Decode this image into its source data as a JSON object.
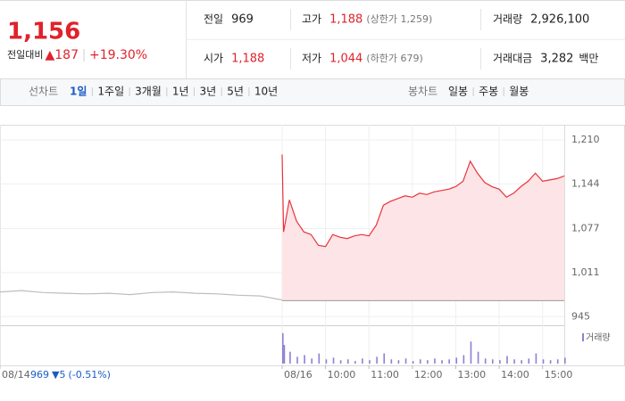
{
  "quote": {
    "price": "1,156",
    "change_label": "전일대비",
    "change": "▲187",
    "change_rate": "+19.30%"
  },
  "summary": {
    "rows": [
      [
        {
          "label": "전일",
          "value": "969"
        },
        {
          "label": "고가",
          "value": "1,188",
          "note": "(상한가 1,259)"
        },
        {
          "label": "거래량",
          "value": "2,926,100"
        }
      ],
      [
        {
          "label": "시가",
          "value": "1,188"
        },
        {
          "label": "저가",
          "value": "1,044",
          "note": "(하한가 679)"
        },
        {
          "label": "거래대금",
          "value": "3,282",
          "unit": "백만"
        }
      ]
    ]
  },
  "tabs": {
    "line_label": "선차트",
    "line": [
      "1일",
      "1주일",
      "3개월",
      "1년",
      "3년",
      "5년",
      "10년"
    ],
    "selected": 0,
    "candle_label": "봉차트",
    "candle": [
      "일봉",
      "주봉",
      "월봉"
    ]
  },
  "chart_data": {
    "type": "line",
    "xlim": [
      -390,
      390
    ],
    "xticks": [
      {
        "value": -390,
        "label": "08/14"
      },
      {
        "value": 0,
        "label": "08/16"
      },
      {
        "value": 60,
        "label": "10:00"
      },
      {
        "value": 120,
        "label": "11:00"
      },
      {
        "value": 180,
        "label": "12:00"
      },
      {
        "value": 240,
        "label": "13:00"
      },
      {
        "value": 300,
        "label": "14:00"
      },
      {
        "value": 360,
        "label": "15:00"
      }
    ],
    "ylim": [
      932,
      1226
    ],
    "yticks": [
      {
        "value": 1210,
        "label": "1,210"
      },
      {
        "value": 1144,
        "label": "1,144"
      },
      {
        "value": 1077,
        "label": "1,077"
      },
      {
        "value": 1011,
        "label": "1,011"
      },
      {
        "value": 945,
        "label": "945"
      }
    ],
    "grid": true,
    "series": [
      {
        "color": "#bdbdbd",
        "x": [
          -390,
          -360,
          -330,
          -300,
          -270,
          -240,
          -210,
          -180,
          -150,
          -120,
          -90,
          -60,
          -30,
          -10,
          0
        ],
        "values": [
          982,
          984,
          981,
          980,
          979,
          980,
          978,
          981,
          982,
          980,
          979,
          977,
          976,
          972,
          970
        ]
      },
      {
        "color": "#e8343c",
        "fill": "#fde4e6",
        "x": [
          0,
          2,
          10,
          20,
          30,
          40,
          50,
          60,
          70,
          80,
          90,
          100,
          110,
          120,
          130,
          140,
          150,
          160,
          170,
          180,
          190,
          200,
          210,
          220,
          230,
          240,
          250,
          260,
          270,
          280,
          290,
          300,
          310,
          320,
          330,
          340,
          350,
          360,
          370,
          380,
          390
        ],
        "values": [
          1188,
          1072,
          1120,
          1088,
          1072,
          1068,
          1052,
          1050,
          1068,
          1064,
          1062,
          1066,
          1068,
          1066,
          1082,
          1112,
          1118,
          1122,
          1126,
          1124,
          1130,
          1128,
          1132,
          1134,
          1136,
          1140,
          1148,
          1178,
          1160,
          1146,
          1140,
          1136,
          1124,
          1130,
          1140,
          1148,
          1160,
          1148,
          1150,
          1152,
          1156
        ]
      }
    ],
    "prev_summary": {
      "close": 969,
      "change": "▼5",
      "change_rate": "(-0.51%)"
    },
    "volume": {
      "name": "거래량",
      "color": "#8e7fd3",
      "vlim": [
        0,
        40
      ],
      "x": [
        0,
        2,
        10,
        20,
        30,
        40,
        50,
        60,
        70,
        80,
        90,
        100,
        110,
        120,
        130,
        140,
        150,
        160,
        170,
        180,
        190,
        200,
        210,
        220,
        230,
        240,
        250,
        260,
        270,
        280,
        290,
        300,
        310,
        320,
        330,
        340,
        350,
        360,
        370,
        380,
        390
      ],
      "values": [
        36,
        22,
        14,
        8,
        10,
        6,
        12,
        5,
        7,
        4,
        5,
        3,
        6,
        4,
        8,
        12,
        5,
        4,
        6,
        3,
        5,
        4,
        6,
        4,
        5,
        7,
        10,
        26,
        14,
        6,
        5,
        4,
        9,
        5,
        4,
        6,
        12,
        5,
        4,
        5,
        7
      ]
    }
  }
}
